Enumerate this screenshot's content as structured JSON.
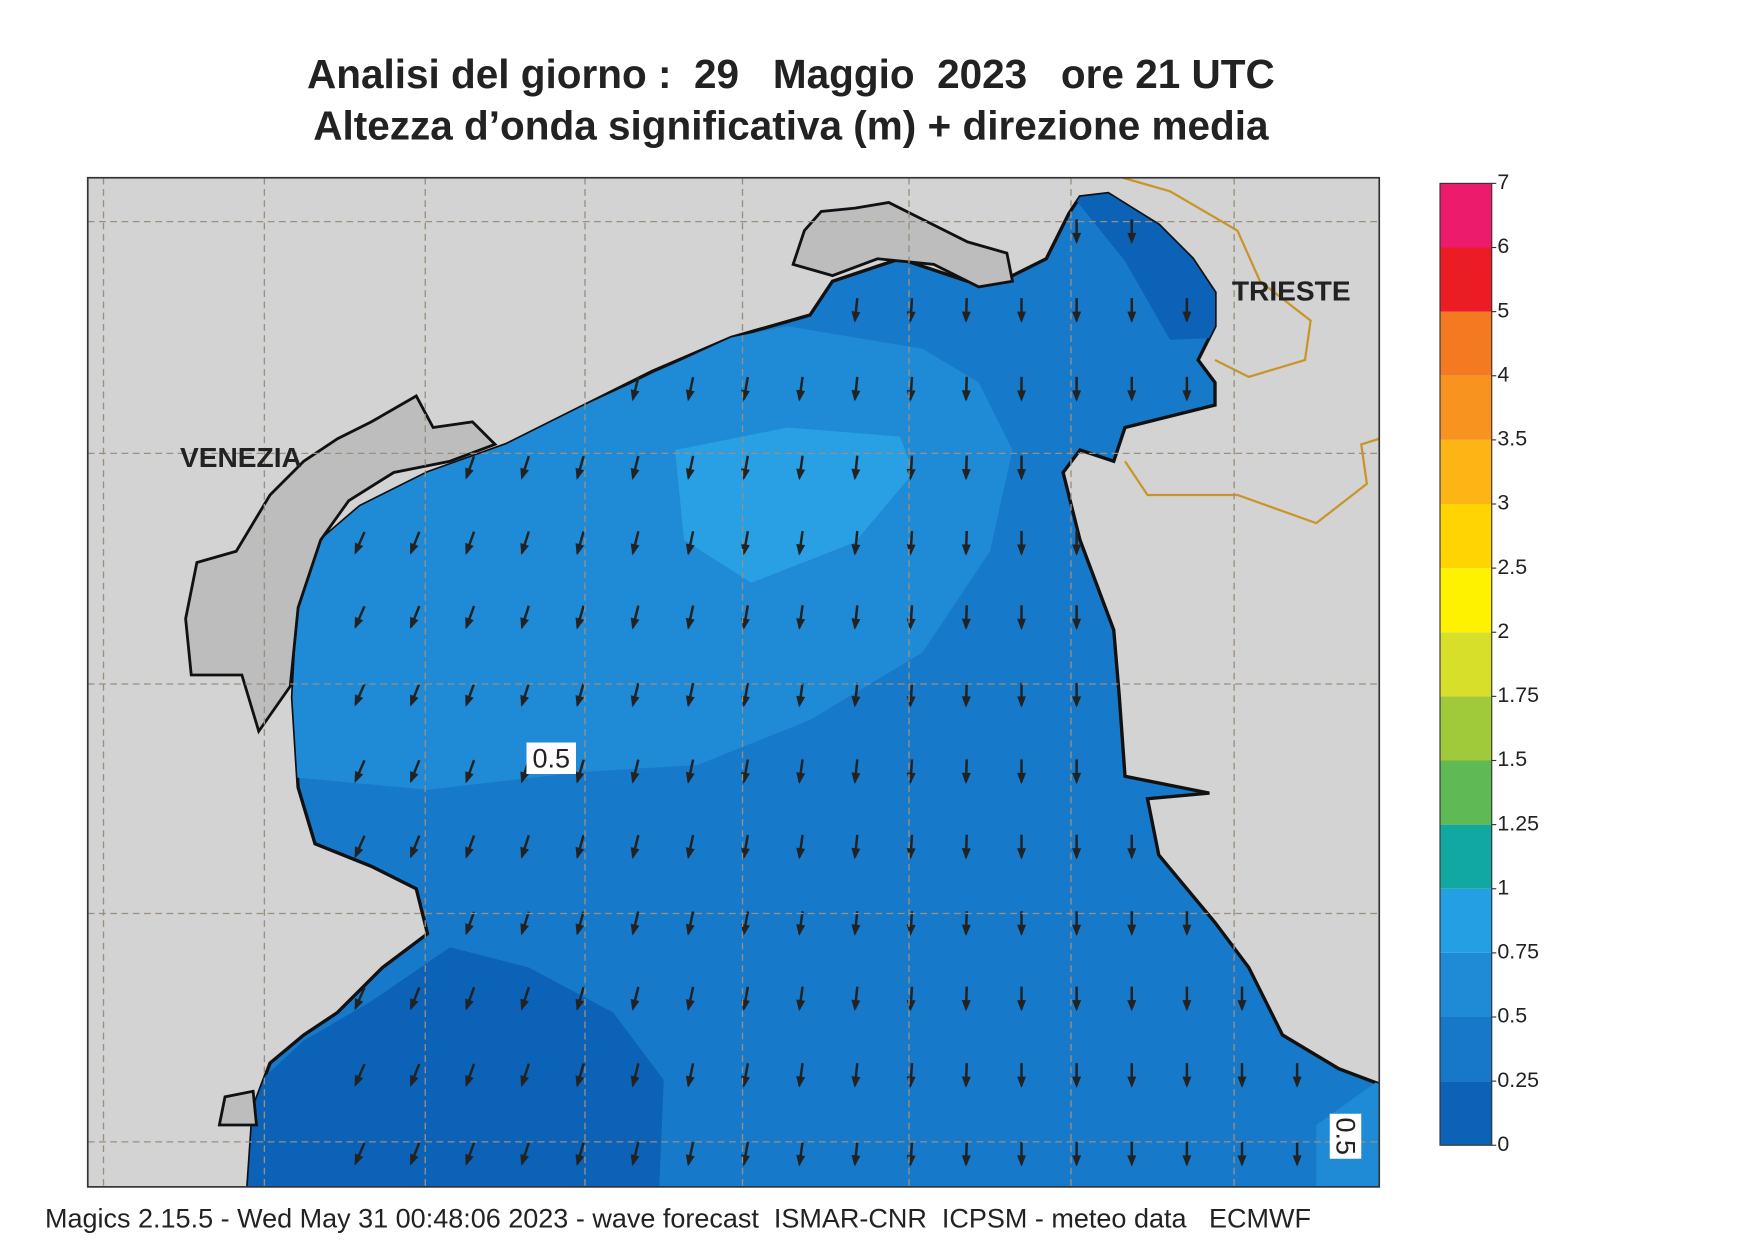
{
  "header": {
    "title": "Analisi del giorno :  29   Maggio  2023   ore 21 UTC",
    "subtitle": "Altezza d’onda significativa (m) + direzione media"
  },
  "map": {
    "places": [
      "VENEZIA",
      "TRIESTE"
    ],
    "contour_labels": [
      "0.5",
      "0.5"
    ]
  },
  "colorbar": {
    "ticks": [
      0,
      0.25,
      0.5,
      0.75,
      1,
      1.25,
      1.5,
      1.75,
      2,
      2.5,
      3,
      3.5,
      4,
      5,
      6,
      7
    ],
    "colors": [
      "#0b62b7",
      "#1777c8",
      "#1f8ad6",
      "#22a0e3",
      "#12a8a2",
      "#5fba55",
      "#a1ca3b",
      "#d8df2a",
      "#fff200",
      "#ffd400",
      "#fdb515",
      "#f8931f",
      "#f37a20",
      "#ec1c24",
      "#ec1b6b"
    ]
  },
  "footer": "Magics 2.15.5 - Wed May 31 00:48:06 2023 - wave forecast  ISMAR-CNR  ICPSM - meteo data   ECMWF"
}
